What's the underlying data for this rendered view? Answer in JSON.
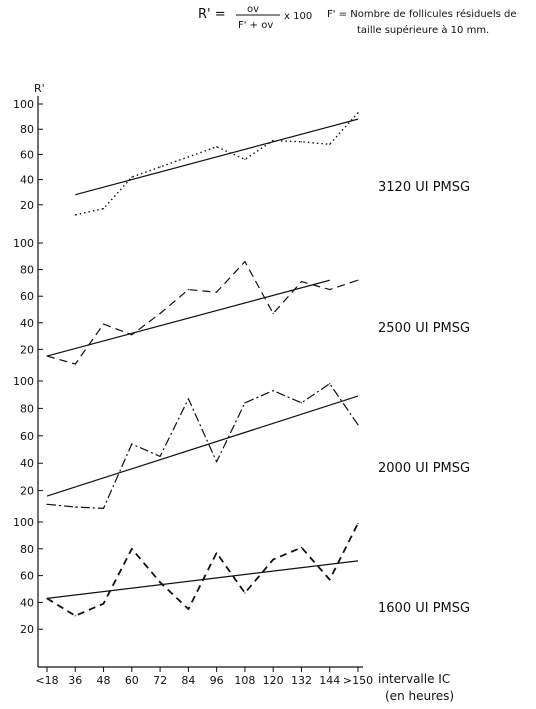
{
  "formula": {
    "lhs": "R' =",
    "numerator": "ov",
    "denominator": "F' + ov",
    "multiplier": "x 100",
    "note_line1": "F' = Nombre de follicules résiduels de",
    "note_line2": "taille supérieure à 10 mm."
  },
  "chart_data": {
    "type": "line",
    "ylabel": "R'",
    "xlabel_line1": "intervalle IC",
    "xlabel_line2": "(en heures)",
    "categories": [
      "<18",
      "36",
      "48",
      "60",
      "72",
      "84",
      "96",
      "108",
      "120",
      "132",
      "144",
      ">150"
    ],
    "panels": [
      {
        "label": "3120 UI PMSG",
        "ylim": [
          0,
          100
        ],
        "yticks": [
          "20",
          "40",
          "60",
          "80",
          "100"
        ],
        "line_style": "dotted",
        "series": [
          {
            "x": "36",
            "y": 12
          },
          {
            "x": "48",
            "y": 17
          },
          {
            "x": "60",
            "y": 42
          },
          {
            "x": "72",
            "y": 50
          },
          {
            "x": "84",
            "y": 58
          },
          {
            "x": "96",
            "y": 66
          },
          {
            "x": "108",
            "y": 56
          },
          {
            "x": "120",
            "y": 71
          },
          {
            "x": "132",
            "y": 70
          },
          {
            "x": "144",
            "y": 68
          },
          {
            "x": ">150",
            "y": 93
          }
        ],
        "regression": [
          {
            "x": "36",
            "y": 28
          },
          {
            "x": ">150",
            "y": 88
          }
        ]
      },
      {
        "label": "2500 UI PMSG",
        "ylim": [
          0,
          100
        ],
        "yticks": [
          "20",
          "40",
          "60",
          "80",
          "100"
        ],
        "line_style": "dashed",
        "series": [
          {
            "x": "<18",
            "y": 15
          },
          {
            "x": "36",
            "y": 9
          },
          {
            "x": "48",
            "y": 39
          },
          {
            "x": "60",
            "y": 31
          },
          {
            "x": "72",
            "y": 47
          },
          {
            "x": "84",
            "y": 65
          },
          {
            "x": "96",
            "y": 63
          },
          {
            "x": "108",
            "y": 86
          },
          {
            "x": "120",
            "y": 47
          },
          {
            "x": "132",
            "y": 71
          },
          {
            "x": "144",
            "y": 65
          },
          {
            "x": ">150",
            "y": 72
          }
        ],
        "regression": [
          {
            "x": "<18",
            "y": 15
          },
          {
            "x": "144",
            "y": 72
          }
        ]
      },
      {
        "label": "2000 UI PMSG",
        "ylim": [
          0,
          100
        ],
        "yticks": [
          "20",
          "40",
          "60",
          "80",
          "100"
        ],
        "line_style": "dash-dot",
        "series": [
          {
            "x": "<18",
            "y": 10
          },
          {
            "x": "36",
            "y": 8
          },
          {
            "x": "48",
            "y": 7
          },
          {
            "x": "60",
            "y": 54
          },
          {
            "x": "72",
            "y": 45
          },
          {
            "x": "84",
            "y": 87
          },
          {
            "x": "96",
            "y": 41
          },
          {
            "x": "108",
            "y": 84
          },
          {
            "x": "120",
            "y": 93
          },
          {
            "x": "132",
            "y": 84
          },
          {
            "x": "144",
            "y": 98
          },
          {
            "x": ">150",
            "y": 68
          }
        ],
        "regression": [
          {
            "x": "<18",
            "y": 16
          },
          {
            "x": ">150",
            "y": 89
          }
        ]
      },
      {
        "label": "1600 UI PMSG",
        "ylim": [
          0,
          100
        ],
        "yticks": [
          "20",
          "40",
          "60",
          "80",
          "100"
        ],
        "line_style": "dashed-heavy",
        "series": [
          {
            "x": "<18",
            "y": 43
          },
          {
            "x": "36",
            "y": 30
          },
          {
            "x": "48",
            "y": 39
          },
          {
            "x": "60",
            "y": 80
          },
          {
            "x": "72",
            "y": 55
          },
          {
            "x": "84",
            "y": 35
          },
          {
            "x": "96",
            "y": 77
          },
          {
            "x": "108",
            "y": 47
          },
          {
            "x": "120",
            "y": 72
          },
          {
            "x": "132",
            "y": 81
          },
          {
            "x": "144",
            "y": 57
          },
          {
            "x": ">150",
            "y": 99
          }
        ],
        "regression": [
          {
            "x": "<18",
            "y": 43
          },
          {
            "x": ">150",
            "y": 71
          }
        ]
      }
    ]
  }
}
